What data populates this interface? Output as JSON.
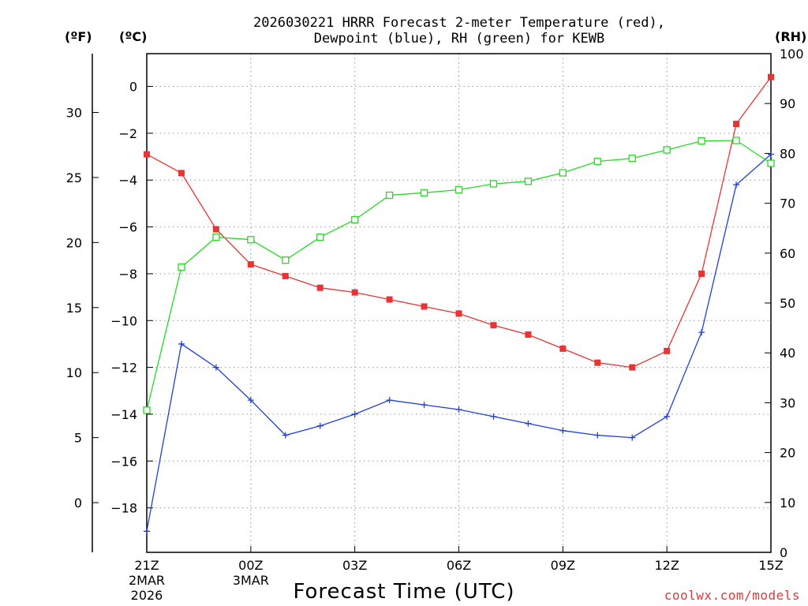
{
  "chart_data": {
    "type": "line",
    "title_line1": "2026030221 HRRR Forecast 2-meter Temperature (red),",
    "title_line2": "Dewpoint (blue), RH (green) for KEWB",
    "xlabel": "Forecast Time (UTC)",
    "credit": "coolwx.com/models",
    "unit_labels": {
      "fahrenheit": "(ºF)",
      "celsius": "(ºC)",
      "rh": "(RH)"
    },
    "hours": [
      0,
      1,
      2,
      3,
      4,
      5,
      6,
      7,
      8,
      9,
      10,
      11,
      12,
      13,
      14,
      15,
      16,
      17,
      18
    ],
    "x_ticks": [
      {
        "hour": 0,
        "label": "21Z",
        "sub1": "2MAR",
        "sub2": "2026"
      },
      {
        "hour": 3,
        "label": "00Z",
        "sub1": "3MAR",
        "sub2": ""
      },
      {
        "hour": 6,
        "label": "03Z",
        "sub1": "",
        "sub2": ""
      },
      {
        "hour": 9,
        "label": "06Z",
        "sub1": "",
        "sub2": ""
      },
      {
        "hour": 12,
        "label": "09Z",
        "sub1": "",
        "sub2": ""
      },
      {
        "hour": 15,
        "label": "12Z",
        "sub1": "",
        "sub2": ""
      },
      {
        "hour": 18,
        "label": "15Z",
        "sub1": "",
        "sub2": ""
      }
    ],
    "xlim": [
      0,
      18
    ],
    "ylim_celsius": [
      -19.9,
      1.4
    ],
    "ylim_rh": [
      0,
      100
    ],
    "y_ticks_celsius": [
      0,
      -2,
      -4,
      -6,
      -8,
      -10,
      -12,
      -14,
      -16,
      -18
    ],
    "y_ticks_fahrenheit": [
      30,
      25,
      20,
      15,
      10,
      5,
      0
    ],
    "y_ticks_rh": [
      100,
      90,
      80,
      70,
      60,
      50,
      40,
      30,
      20,
      10,
      0
    ],
    "series": [
      {
        "name": "Temperature",
        "axis": "celsius",
        "color": "#e83434",
        "marker": "filled-square",
        "values": [
          -2.9,
          -3.7,
          -6.1,
          -7.6,
          -8.1,
          -8.6,
          -8.8,
          -9.1,
          -9.4,
          -9.7,
          -10.2,
          -10.6,
          -11.2,
          -11.8,
          -12.0,
          -11.3,
          -8.0,
          -1.6,
          0.4
        ]
      },
      {
        "name": "Dewpoint",
        "axis": "celsius",
        "color": "#1f3fe0",
        "marker": "plus",
        "values": [
          -19.0,
          -11.0,
          -12.0,
          -13.4,
          -14.9,
          -14.5,
          -14.0,
          -13.4,
          -13.6,
          -13.8,
          -14.1,
          -14.4,
          -14.7,
          -14.9,
          -15.0,
          -14.1,
          -10.5,
          -4.2,
          -2.9
        ]
      },
      {
        "name": "RH",
        "axis": "rh",
        "color": "#22dd22",
        "marker": "open-square",
        "values": [
          28.5,
          57.2,
          63.2,
          62.7,
          58.6,
          63.2,
          66.7,
          71.6,
          72.1,
          72.7,
          73.9,
          74.4,
          76.1,
          78.4,
          79.0,
          80.7,
          82.5,
          82.6,
          78.0
        ]
      }
    ]
  }
}
